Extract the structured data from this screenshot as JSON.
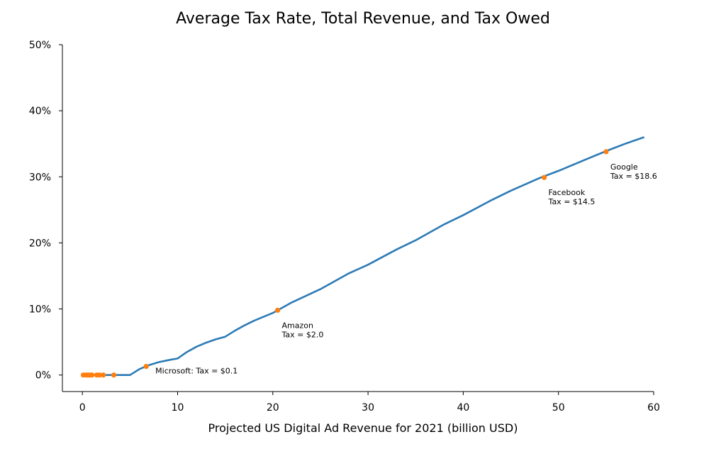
{
  "chart_data": {
    "type": "line",
    "title": "Average Tax Rate, Total Revenue, and Tax Owed",
    "xlabel": "Projected US Digital Ad Revenue for 2021 (billion USD)",
    "ylabel": "",
    "xlim": [
      -2.1,
      60
    ],
    "ylim": [
      -2.5,
      50
    ],
    "x_ticks": [
      0,
      10,
      20,
      30,
      40,
      50,
      60
    ],
    "x_tick_labels": [
      "0",
      "10",
      "20",
      "30",
      "40",
      "50",
      "60"
    ],
    "y_ticks": [
      0,
      10,
      20,
      30,
      40,
      50
    ],
    "y_tick_labels": [
      "0%",
      "10%",
      "20%",
      "30%",
      "40%",
      "50%"
    ],
    "grid": false,
    "colors": {
      "line": "#2c7bb6",
      "points": "#ff7f0e"
    },
    "series": [
      {
        "name": "Average tax rate",
        "x": [
          0,
          1,
          2,
          3,
          4,
          5,
          6,
          7,
          8,
          9,
          10,
          11,
          12,
          13,
          14,
          15,
          16,
          17,
          18,
          19,
          20,
          22,
          25,
          28,
          30,
          33,
          35,
          38,
          40,
          43,
          45,
          48,
          50,
          53,
          55,
          57,
          59
        ],
        "y": [
          0,
          0,
          0,
          0,
          0,
          0,
          0.9,
          1.5,
          1.95,
          2.25,
          2.5,
          3.5,
          4.3,
          4.9,
          5.4,
          5.8,
          6.7,
          7.5,
          8.2,
          8.8,
          9.4,
          11.0,
          13.0,
          15.4,
          16.7,
          19.0,
          20.4,
          22.8,
          24.2,
          26.5,
          27.9,
          29.8,
          30.9,
          32.7,
          33.9,
          35.0,
          36.0
        ]
      }
    ],
    "points": {
      "name": "Companies",
      "x": [
        0.1,
        0.4,
        0.6,
        0.8,
        1.0,
        1.5,
        1.8,
        2.2,
        3.3,
        6.7,
        20.5,
        48.5,
        55
      ],
      "y": [
        0,
        0,
        0,
        0,
        0,
        0,
        0,
        0,
        0,
        1.3,
        9.8,
        29.9,
        33.8
      ]
    },
    "annotations": [
      {
        "lines": [
          "Microsoft: Tax = $0.1"
        ],
        "x": 6.7,
        "y": 1.3
      },
      {
        "lines": [
          "Amazon",
          "Tax = $2.0"
        ],
        "x": 20.5,
        "y": 9.8
      },
      {
        "lines": [
          "Facebook",
          "Tax = $14.5"
        ],
        "x": 48.5,
        "y": 29.9
      },
      {
        "lines": [
          "Google",
          "Tax = $18.6"
        ],
        "x": 55,
        "y": 33.8
      }
    ]
  }
}
